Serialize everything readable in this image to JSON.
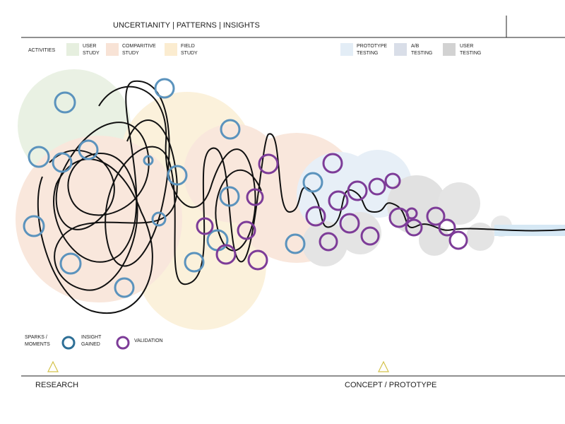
{
  "header": {
    "title": "UNCERTIANITY   | PATTERNS  | INSIGHTS"
  },
  "activities": {
    "label": "ACTIVITIES",
    "items": [
      {
        "lines": [
          "USER",
          "STUDY"
        ]
      },
      {
        "lines": [
          "COMPARITIVE",
          "STUDY"
        ]
      },
      {
        "lines": [
          "FIELD",
          "STUDY"
        ]
      },
      {
        "lines": [
          "PROTOTYPE",
          "TESTING"
        ]
      },
      {
        "lines": [
          "A/B",
          "TESTING"
        ]
      },
      {
        "lines": [
          "USER",
          "TESTING"
        ]
      }
    ]
  },
  "sparks": {
    "label": [
      "SPARKS /",
      "MOMENTS"
    ],
    "items": [
      {
        "lines": [
          "INSIGHT",
          "GAINED"
        ]
      },
      {
        "lines": [
          "VALIDATION"
        ]
      }
    ]
  },
  "phases": [
    "RESEARCH",
    "CONCEPT / PROTOTYPE"
  ]
}
